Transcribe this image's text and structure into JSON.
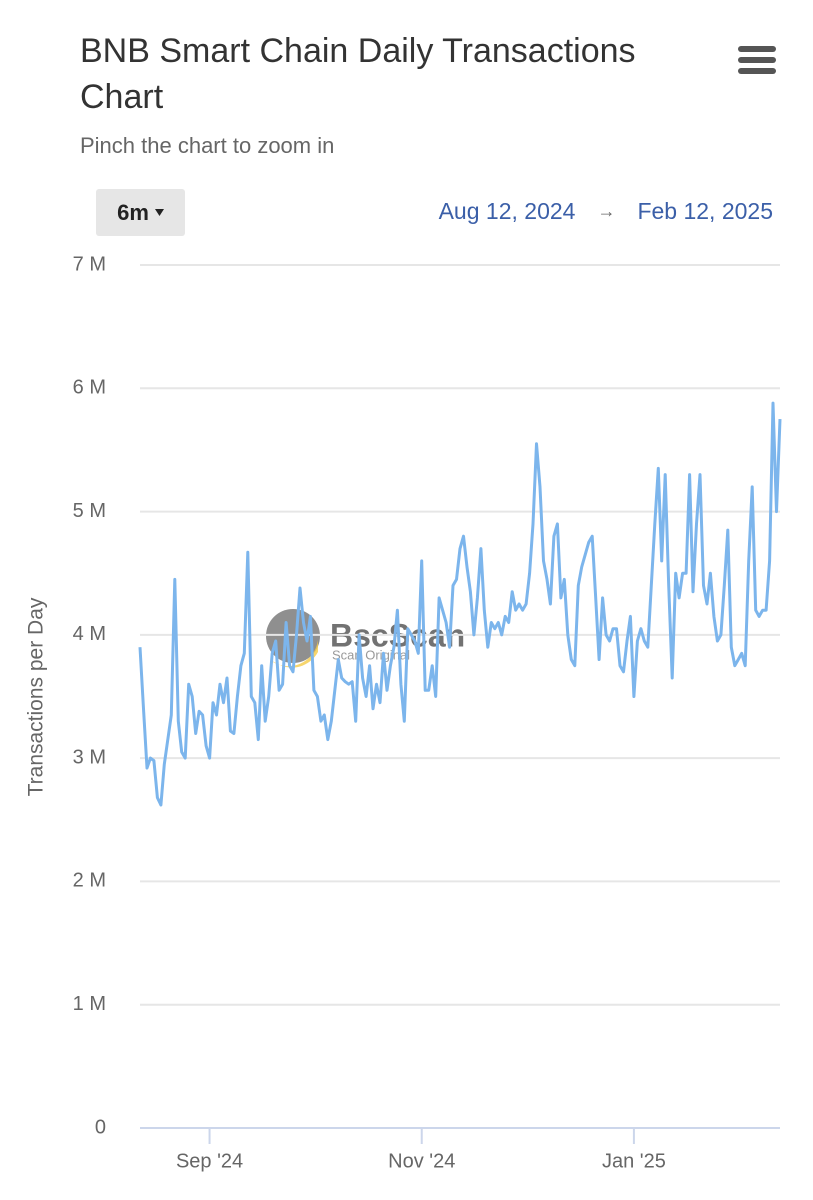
{
  "chart_data": {
    "type": "line",
    "title": "BNB Smart Chain Daily Transactions Chart",
    "subtitle": "Pinch the chart to zoom in",
    "range_button": "6m",
    "range_start": "Aug 12, 2024",
    "range_separator": "→",
    "range_end": "Feb 12, 2025",
    "y_label": "Transactions per Day",
    "watermark": "BscScan",
    "watermark_subtitle": "Scan Original",
    "xlim": [
      "2024-08-12",
      "2025-02-12"
    ],
    "xticks": [
      {
        "value": "2024-09-01",
        "label": "Sep '24"
      },
      {
        "value": "2024-11-01",
        "label": "Nov '24"
      },
      {
        "value": "2025-01-01",
        "label": "Jan '25"
      }
    ],
    "ylim": [
      0,
      7000000
    ],
    "yticks": [
      0,
      {
        "value": 1000000,
        "label": "1 M"
      },
      {
        "value": 2000000,
        "label": "2 M"
      },
      {
        "value": 3000000,
        "label": "3 M"
      },
      {
        "value": 4000000,
        "label": "4 M"
      },
      {
        "value": 5000000,
        "label": "5 M"
      },
      {
        "value": 6000000,
        "label": "6 M"
      },
      {
        "value": 7000000,
        "label": "7 M"
      }
    ],
    "grid": true,
    "x": [
      "2024-08-12",
      "2024-08-13",
      "2024-08-14",
      "2024-08-15",
      "2024-08-16",
      "2024-08-17",
      "2024-08-18",
      "2024-08-19",
      "2024-08-20",
      "2024-08-21",
      "2024-08-22",
      "2024-08-23",
      "2024-08-24",
      "2024-08-25",
      "2024-08-26",
      "2024-08-27",
      "2024-08-28",
      "2024-08-29",
      "2024-08-30",
      "2024-08-31",
      "2024-09-01",
      "2024-09-02",
      "2024-09-03",
      "2024-09-04",
      "2024-09-05",
      "2024-09-06",
      "2024-09-07",
      "2024-09-08",
      "2024-09-09",
      "2024-09-10",
      "2024-09-11",
      "2024-09-12",
      "2024-09-13",
      "2024-09-14",
      "2024-09-15",
      "2024-09-16",
      "2024-09-17",
      "2024-09-18",
      "2024-09-19",
      "2024-09-20",
      "2024-09-21",
      "2024-09-22",
      "2024-09-23",
      "2024-09-24",
      "2024-09-25",
      "2024-09-26",
      "2024-09-27",
      "2024-09-28",
      "2024-09-29",
      "2024-09-30",
      "2024-10-01",
      "2024-10-02",
      "2024-10-03",
      "2024-10-04",
      "2024-10-05",
      "2024-10-06",
      "2024-10-07",
      "2024-10-08",
      "2024-10-09",
      "2024-10-10",
      "2024-10-11",
      "2024-10-12",
      "2024-10-13",
      "2024-10-14",
      "2024-10-15",
      "2024-10-16",
      "2024-10-17",
      "2024-10-18",
      "2024-10-19",
      "2024-10-20",
      "2024-10-21",
      "2024-10-22",
      "2024-10-23",
      "2024-10-24",
      "2024-10-25",
      "2024-10-26",
      "2024-10-27",
      "2024-10-28",
      "2024-10-29",
      "2024-10-30",
      "2024-10-31",
      "2024-11-01",
      "2024-11-02",
      "2024-11-03",
      "2024-11-04",
      "2024-11-05",
      "2024-11-06",
      "2024-11-07",
      "2024-11-08",
      "2024-11-09",
      "2024-11-10",
      "2024-11-11",
      "2024-11-12",
      "2024-11-13",
      "2024-11-14",
      "2024-11-15",
      "2024-11-16",
      "2024-11-17",
      "2024-11-18",
      "2024-11-19",
      "2024-11-20",
      "2024-11-21",
      "2024-11-22",
      "2024-11-23",
      "2024-11-24",
      "2024-11-25",
      "2024-11-26",
      "2024-11-27",
      "2024-11-28",
      "2024-11-29",
      "2024-11-30",
      "2024-12-01",
      "2024-12-02",
      "2024-12-03",
      "2024-12-04",
      "2024-12-05",
      "2024-12-06",
      "2024-12-07",
      "2024-12-08",
      "2024-12-09",
      "2024-12-10",
      "2024-12-11",
      "2024-12-12",
      "2024-12-13",
      "2024-12-14",
      "2024-12-15",
      "2024-12-16",
      "2024-12-17",
      "2024-12-18",
      "2024-12-19",
      "2024-12-20",
      "2024-12-21",
      "2024-12-22",
      "2024-12-23",
      "2024-12-24",
      "2024-12-25",
      "2024-12-26",
      "2024-12-27",
      "2024-12-28",
      "2024-12-29",
      "2024-12-30",
      "2024-12-31",
      "2025-01-01",
      "2025-01-02",
      "2025-01-03",
      "2025-01-04",
      "2025-01-05",
      "2025-01-06",
      "2025-01-07",
      "2025-01-08",
      "2025-01-09",
      "2025-01-10",
      "2025-01-11",
      "2025-01-12",
      "2025-01-13",
      "2025-01-14",
      "2025-01-15",
      "2025-01-16",
      "2025-01-17",
      "2025-01-18",
      "2025-01-19",
      "2025-01-20",
      "2025-01-21",
      "2025-01-22",
      "2025-01-23",
      "2025-01-24",
      "2025-01-25",
      "2025-01-26",
      "2025-01-27",
      "2025-01-28",
      "2025-01-29",
      "2025-01-30",
      "2025-01-31",
      "2025-02-01",
      "2025-02-02",
      "2025-02-03",
      "2025-02-04",
      "2025-02-05",
      "2025-02-06",
      "2025-02-07",
      "2025-02-08",
      "2025-02-09",
      "2025-02-10",
      "2025-02-11",
      "2025-02-12"
    ],
    "series": [
      {
        "name": "Transactions per Day",
        "color": "#7cb5ec",
        "values": [
          3900000,
          3400000,
          2920000,
          3000000,
          2980000,
          2680000,
          2620000,
          2950000,
          3150000,
          3350000,
          4450000,
          3300000,
          3050000,
          3000000,
          3600000,
          3500000,
          3200000,
          3380000,
          3350000,
          3100000,
          3000000,
          3450000,
          3350000,
          3600000,
          3450000,
          3650000,
          3220000,
          3200000,
          3500000,
          3750000,
          3850000,
          4670000,
          3500000,
          3450000,
          3150000,
          3750000,
          3300000,
          3500000,
          3850000,
          3950000,
          3550000,
          3600000,
          4100000,
          3750000,
          3700000,
          4000000,
          4380000,
          4100000,
          3950000,
          4150000,
          3550000,
          3500000,
          3300000,
          3350000,
          3150000,
          3300000,
          3550000,
          3800000,
          3650000,
          3620000,
          3600000,
          3620000,
          3300000,
          4000000,
          3650000,
          3500000,
          3750000,
          3400000,
          3600000,
          3450000,
          3850000,
          3550000,
          3750000,
          3900000,
          4200000,
          3600000,
          3300000,
          4050000,
          4000000,
          3950000,
          3850000,
          4600000,
          3550000,
          3550000,
          3750000,
          3500000,
          4300000,
          4200000,
          4100000,
          3900000,
          4400000,
          4450000,
          4700000,
          4800000,
          4550000,
          4350000,
          4000000,
          4300000,
          4700000,
          4200000,
          3900000,
          4100000,
          4050000,
          4100000,
          4000000,
          4150000,
          4100000,
          4350000,
          4200000,
          4250000,
          4200000,
          4250000,
          4500000,
          4900000,
          5550000,
          5200000,
          4600000,
          4450000,
          4250000,
          4800000,
          4900000,
          4300000,
          4450000,
          4000000,
          3800000,
          3750000,
          4400000,
          4550000,
          4650000,
          4750000,
          4800000,
          4300000,
          3800000,
          4300000,
          4000000,
          3950000,
          4050000,
          4050000,
          3750000,
          3700000,
          3950000,
          4150000,
          3500000,
          3950000,
          4050000,
          3950000,
          3900000,
          4400000,
          4900000,
          5350000,
          4600000,
          5300000,
          4400000,
          3650000,
          4500000,
          4300000,
          4500000,
          4500000,
          5300000,
          4350000,
          4900000,
          5300000,
          4400000,
          4250000,
          4500000,
          4150000,
          3950000,
          4000000,
          4400000,
          4850000,
          3900000,
          3750000,
          3800000,
          3850000,
          3750000,
          4600000,
          5200000,
          4200000,
          4150000,
          4200000,
          4200000,
          4600000,
          5880000,
          5000000,
          5750000
        ]
      }
    ]
  }
}
